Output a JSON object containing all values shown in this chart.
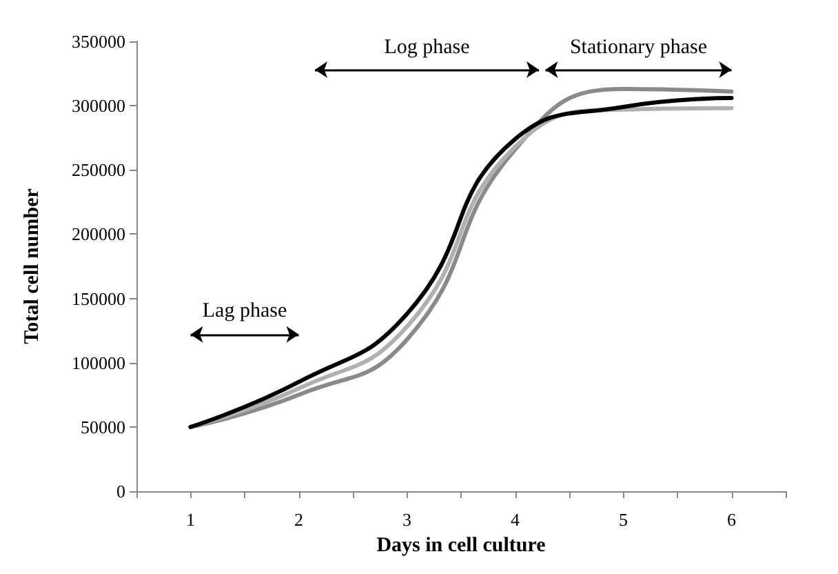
{
  "chart_data": {
    "type": "line",
    "xlabel": "Days in cell culture",
    "ylabel": "Total cell number",
    "x": [
      1,
      2,
      3,
      4,
      5,
      6
    ],
    "xlim": [
      0.5,
      6.5
    ],
    "xticks": [
      {
        "value": 0.5,
        "label": null
      },
      1,
      {
        "value": 1.5,
        "label": null
      },
      2,
      {
        "value": 2.5,
        "label": null
      },
      3,
      {
        "value": 3.5,
        "label": null
      },
      4,
      {
        "value": 4.5,
        "label": null
      },
      5,
      {
        "value": 5.5,
        "label": null
      },
      6,
      {
        "value": 6.5,
        "label": null
      }
    ],
    "ylim": [
      0,
      350000
    ],
    "yticks": [
      0,
      50000,
      100000,
      150000,
      200000,
      250000,
      300000,
      350000
    ],
    "series": [
      {
        "color": "#000000",
        "values": [
          50000,
          85000,
          138000,
          274000,
          299000,
          306000
        ]
      },
      {
        "color": "#b0b0b0",
        "values": [
          50000,
          80000,
          128000,
          268000,
          297000,
          298000
        ]
      },
      {
        "color": "#8a8a8a",
        "values": [
          50000,
          75000,
          118000,
          266000,
          313000,
          311000
        ]
      }
    ],
    "annotations": [
      "Lag phase",
      "Log phase",
      "Stationary phase"
    ],
    "grid": false,
    "marker": "none",
    "line_style": "solid"
  }
}
